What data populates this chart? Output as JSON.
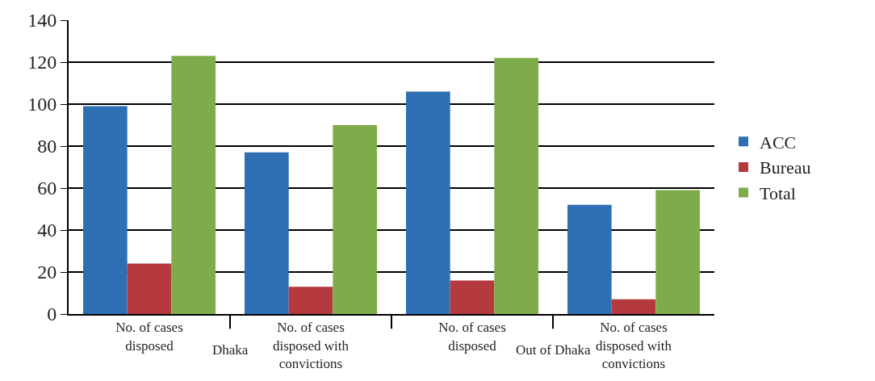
{
  "chart_data": {
    "type": "bar",
    "categories": [
      "No. of cases disposed",
      "No. of cases disposed with convictions",
      "No. of cases disposed",
      "No. of cases disposed with convictions"
    ],
    "series": [
      {
        "name": "ACC",
        "color": "#2e6fb4",
        "values": [
          99,
          77,
          106,
          52
        ]
      },
      {
        "name": "Bureau",
        "color": "#b43a3e",
        "values": [
          24,
          13,
          16,
          7
        ]
      },
      {
        "name": "Total",
        "color": "#7fac4b",
        "values": [
          123,
          90,
          122,
          59
        ]
      }
    ],
    "annotations": [
      "Dhaka",
      "Out of Dhaka"
    ],
    "ylim": [
      0,
      140
    ],
    "yticks": [
      0,
      20,
      40,
      60,
      80,
      100,
      120,
      140
    ],
    "grid": "y",
    "legend": "right"
  }
}
